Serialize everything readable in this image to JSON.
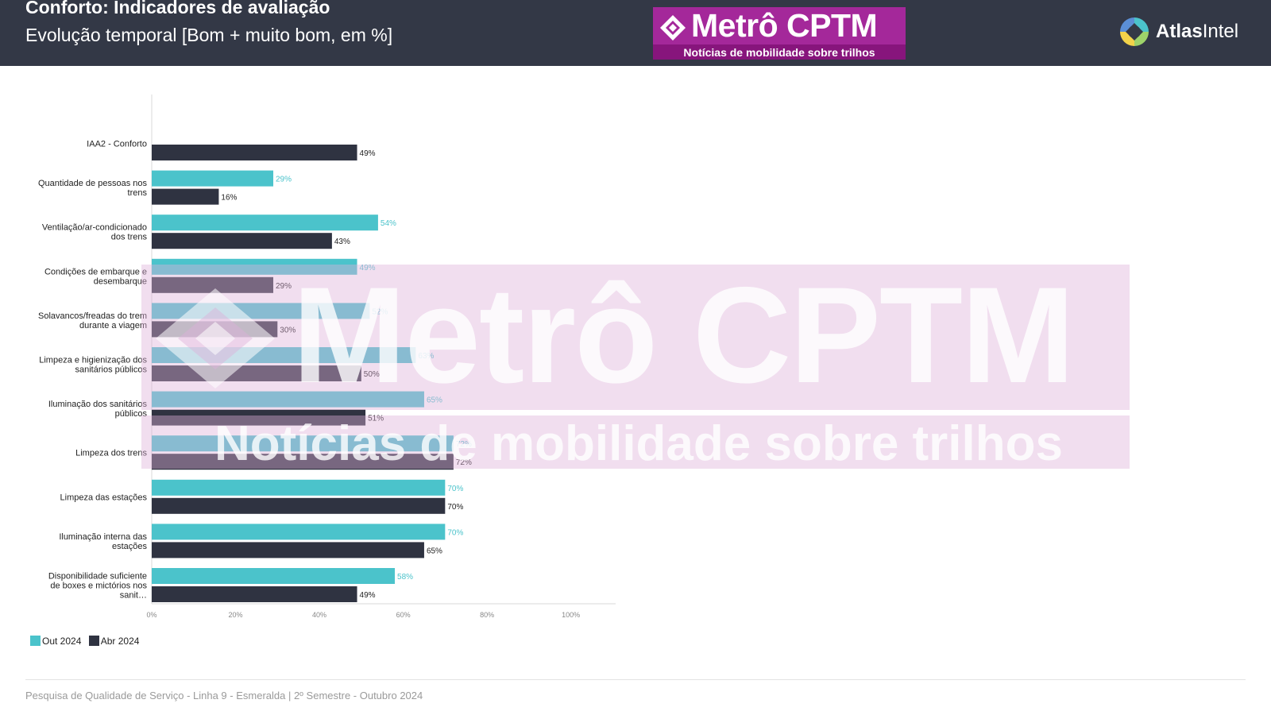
{
  "header": {
    "title": "Conforto: Indicadores de avaliação",
    "subtitle": "Evolução temporal [Bom + muito bom, em %]",
    "background": "#333846"
  },
  "brand": {
    "name": "Metrô CPTM",
    "tagline": "Notícias de mobilidade sobre trilhos",
    "color": "#a4289a"
  },
  "atlas": {
    "name_bold": "Atlas",
    "name_light": "Intel",
    "icon": "atlasintel-logo-icon"
  },
  "watermark": {
    "name": "Metrô CPTM",
    "tagline": "Notícias de mobilidade sobre trilhos"
  },
  "chart_data": {
    "type": "bar",
    "orientation": "horizontal",
    "categories": [
      "IAA2 - Conforto",
      "Quantidade de pessoas nos trens",
      "Ventilação/ar-condicionado dos trens",
      "Condições de embarque e desembarque",
      "Solavancos/freadas do trem durante a viagem",
      "Limpeza e higienização dos sanitários públicos",
      "Iluminação dos sanitários públicos",
      "Limpeza dos trens",
      "Limpeza das estações",
      "Iluminação interna das estações",
      "Disponibilidade suficiente de boxes e mictórios nos sanit…"
    ],
    "series": [
      {
        "name": "Out 2024",
        "color": "#4bc3cb",
        "values": [
          null,
          29,
          54,
          49,
          52,
          63,
          65,
          72,
          70,
          70,
          58
        ]
      },
      {
        "name": "Abr 2024",
        "color": "#2f3341",
        "values": [
          49,
          16,
          43,
          29,
          30,
          50,
          51,
          72,
          70,
          65,
          49
        ]
      }
    ],
    "x_ticks": [
      "0%",
      "20%",
      "40%",
      "60%",
      "80%",
      "100%"
    ],
    "xlim": [
      0,
      105
    ],
    "value_suffix": "%",
    "grid": false,
    "legend_position": "bottom-left"
  },
  "footer": {
    "text": "Pesquisa de Qualidade de Serviço - Linha 9 - Esmeralda | 2º Semestre - Outubro 2024"
  }
}
